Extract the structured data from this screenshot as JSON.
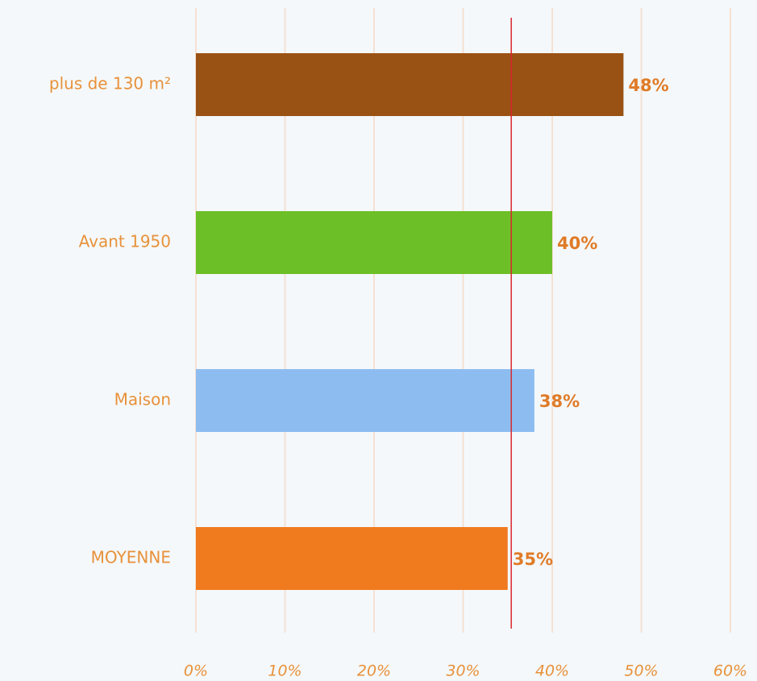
{
  "chart_data": {
    "type": "hbar",
    "categories": [
      "plus de 130 m²",
      "Avant 1950",
      "Maison",
      "MOYENNE"
    ],
    "values": [
      48,
      40,
      38,
      35
    ],
    "value_labels": [
      "48%",
      "40%",
      "38%",
      "35%"
    ],
    "colors": [
      "#9a5214",
      "#6dbf27",
      "#8dbdf0",
      "#f07a1e"
    ],
    "xlim": [
      0,
      60
    ],
    "xticks": [
      {
        "value": 0,
        "label": "0%"
      },
      {
        "value": 10,
        "label": "10%"
      },
      {
        "value": 20,
        "label": "20%"
      },
      {
        "value": 30,
        "label": "30%"
      },
      {
        "value": 40,
        "label": "40%"
      },
      {
        "value": 50,
        "label": "50%"
      },
      {
        "value": 60,
        "label": "60%"
      }
    ],
    "grid": true,
    "reference_line": {
      "value": 35.4,
      "color": "#d9262c"
    }
  }
}
